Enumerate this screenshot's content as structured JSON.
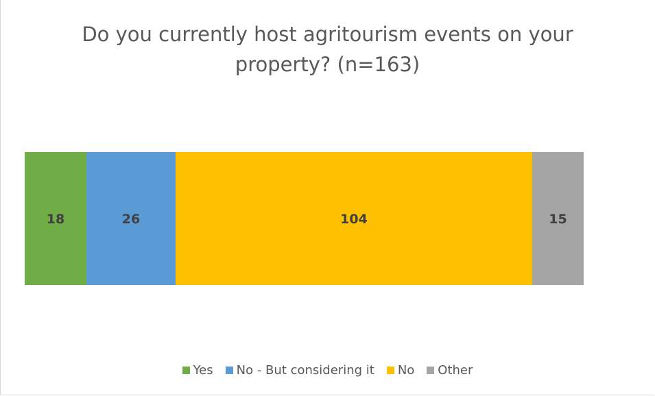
{
  "chart_data": {
    "type": "bar",
    "orientation": "horizontal",
    "stacked": true,
    "title": "Do you currently host agritourism events on your property? (n=163)",
    "xlabel": "",
    "ylabel": "",
    "categories": [
      ""
    ],
    "series": [
      {
        "name": "Yes",
        "values": [
          18
        ],
        "color": "#70ad47",
        "label": "18"
      },
      {
        "name": "No - But considering it",
        "values": [
          26
        ],
        "color": "#5b9bd5",
        "label": "26"
      },
      {
        "name": "No",
        "values": [
          104
        ],
        "color": "#ffc000",
        "label": "104"
      },
      {
        "name": "Other",
        "values": [
          15
        ],
        "color": "#a5a5a5",
        "label": "15"
      }
    ],
    "xlim": [
      0,
      163
    ],
    "grid": false,
    "legend": "bottom",
    "data_labels": true
  }
}
